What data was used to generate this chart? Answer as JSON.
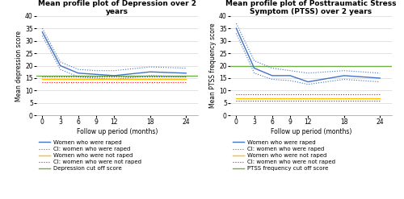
{
  "time_points": [
    0,
    3,
    6,
    9,
    12,
    18,
    24
  ],
  "dep_raped": [
    33.5,
    20.0,
    17.0,
    16.5,
    16.0,
    17.5,
    17.0
  ],
  "dep_raped_upper": [
    35.0,
    21.5,
    18.5,
    18.0,
    18.0,
    19.5,
    19.0
  ],
  "dep_raped_lower": [
    32.0,
    18.5,
    15.5,
    15.0,
    14.5,
    16.0,
    15.5
  ],
  "dep_not_raped": [
    14.5,
    14.5,
    14.5,
    14.5,
    14.5,
    14.5,
    14.5
  ],
  "dep_not_raped_upper": [
    15.5,
    15.5,
    15.5,
    15.5,
    15.5,
    15.5,
    15.5
  ],
  "dep_not_raped_lower": [
    13.5,
    13.5,
    13.5,
    13.5,
    13.5,
    13.5,
    13.5
  ],
  "dep_cutoff": 16.0,
  "ptss_raped": [
    35.0,
    19.0,
    16.0,
    16.0,
    13.5,
    16.0,
    15.0
  ],
  "ptss_raped_upper": [
    37.0,
    22.0,
    19.0,
    18.0,
    17.0,
    18.0,
    17.0
  ],
  "ptss_raped_lower": [
    33.0,
    17.0,
    14.5,
    14.0,
    12.5,
    14.5,
    13.5
  ],
  "ptss_not_raped": [
    7.0,
    7.0,
    7.0,
    7.0,
    7.0,
    7.0,
    7.0
  ],
  "ptss_not_raped_upper": [
    8.5,
    8.5,
    8.5,
    8.5,
    8.5,
    8.5,
    8.5
  ],
  "ptss_not_raped_lower": [
    6.0,
    6.0,
    6.0,
    6.0,
    6.0,
    6.0,
    6.0
  ],
  "ptss_cutoff": 20.0,
  "color_raped": "#4472C4",
  "color_not_raped": "#FFC000",
  "color_cutoff_dep": "#70AD47",
  "color_cutoff_ptss": "#70AD47",
  "color_ci_raped": "#4472C4",
  "color_ci_not_raped": "#FF0000",
  "dep_title": "Mean profile plot of Depression over 2\nyears",
  "ptss_title": "Mean profile plot of Posttraumatic Stress\nSymptom (PTSS) over 2 years",
  "dep_ylabel": "Mean depression score",
  "ptss_ylabel": "Mean PTSS frequency score",
  "xlabel": "Follow up period (months)",
  "ylim": [
    0,
    40
  ],
  "yticks": [
    0,
    5,
    10,
    15,
    20,
    25,
    30,
    35,
    40
  ],
  "legend_raped": "Women who were raped",
  "legend_ci_raped": "CI: women who were raped",
  "legend_not_raped": "Women who were not raped",
  "legend_ci_not_raped": "CI: women who were not raped",
  "legend_dep_cutoff": "Depression cut off score",
  "legend_ptss_cutoff": "PTSS frequency cut off score",
  "title_fontsize": 6.5,
  "label_fontsize": 5.5,
  "tick_fontsize": 5.5,
  "legend_fontsize": 5.0,
  "linewidth": 1.0,
  "ci_linewidth": 0.8
}
